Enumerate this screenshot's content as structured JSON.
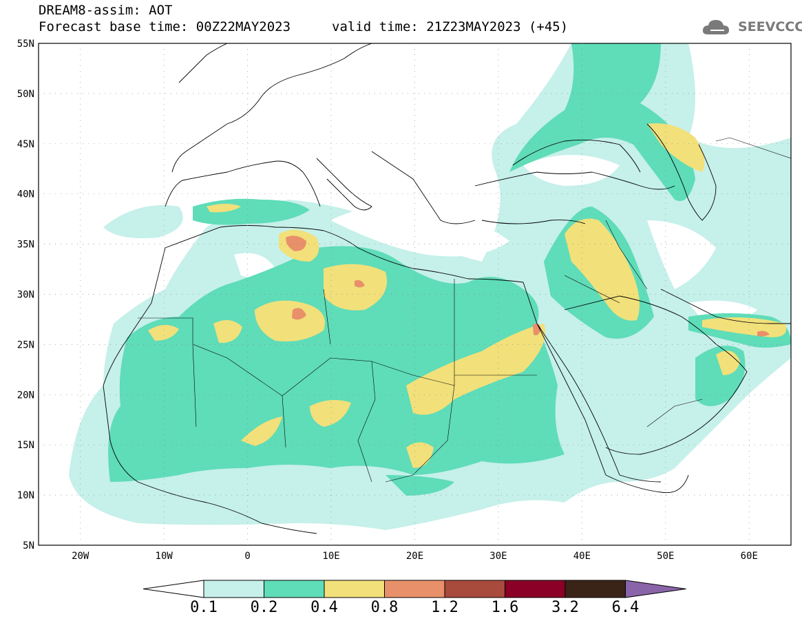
{
  "header": {
    "title_line1": "DREAM8-assim: AOT",
    "title_line2": "Forecast base time: 00Z22MAY2023",
    "valid_time": "valid time: 21Z23MAY2023 (+45)",
    "logo_text": "SEEVCCC"
  },
  "map": {
    "projection": "lat-lon",
    "lon_range": [
      -25,
      65
    ],
    "lat_range": [
      5,
      55
    ],
    "lat_ticks": [
      "55N",
      "50N",
      "45N",
      "40N",
      "35N",
      "30N",
      "25N",
      "20N",
      "15N",
      "10N",
      "5N"
    ],
    "lon_ticks": [
      "20W",
      "10W",
      "0",
      "10E",
      "20E",
      "30E",
      "40E",
      "50E",
      "60E"
    ],
    "colors": {
      "c01": "#c6f0ea",
      "c02": "#5fdcb8",
      "c04": "#f2e07a",
      "c08": "#e8906a",
      "c12": "#a84a3c",
      "c16": "#8a0026",
      "c32": "#3a2418",
      "c64": "#8a64a8"
    }
  },
  "colorbar": {
    "labels": [
      "0.1",
      "0.2",
      "0.4",
      "0.8",
      "1.2",
      "1.6",
      "3.2",
      "6.4"
    ]
  }
}
